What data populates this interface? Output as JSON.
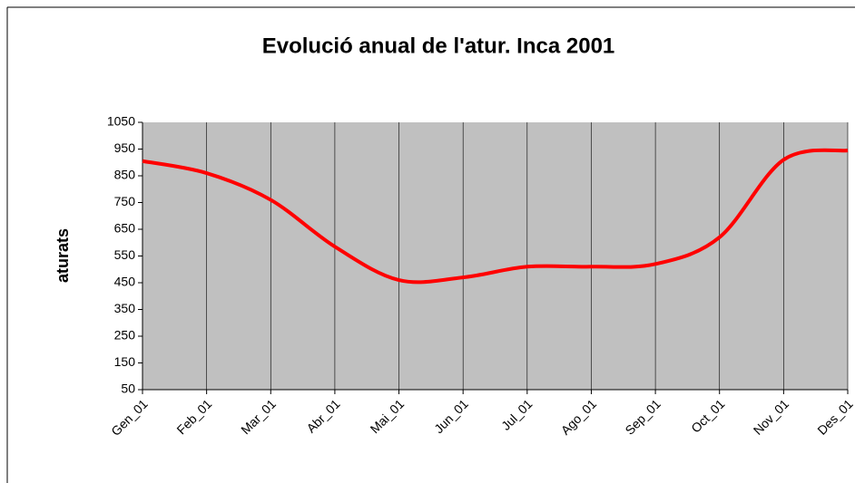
{
  "chart_data": {
    "type": "line",
    "title": "Evolució anual de l'atur. Inca 2001",
    "y_label": "aturats",
    "categories": [
      "Gen_01",
      "Feb_01",
      "Mar_01",
      "Abr_01",
      "Mai_01",
      "Jun_01",
      "Jul_01",
      "Ago_01",
      "Sep_01",
      "Oct_01",
      "Nov_01",
      "Des_01"
    ],
    "series": [
      {
        "name": "aturats",
        "color": "#ff0000",
        "values": [
          905,
          860,
          760,
          585,
          460,
          470,
          510,
          510,
          520,
          620,
          910,
          945
        ]
      }
    ],
    "ylim": [
      50,
      1050
    ],
    "yticks": [
      50,
      150,
      250,
      350,
      450,
      550,
      650,
      750,
      850,
      950,
      1050
    ],
    "grid": true,
    "smooth": true
  }
}
